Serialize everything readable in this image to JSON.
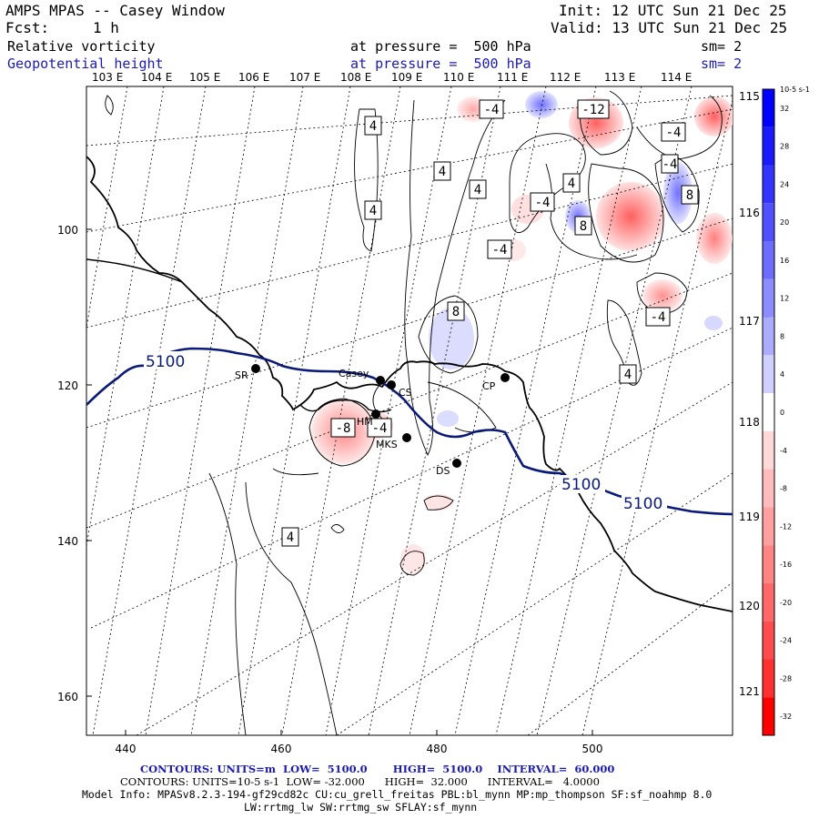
{
  "header": {
    "title": "AMPS MPAS -- Casey Window",
    "init": "Init: 12 UTC Sun 21 Dec 25",
    "fcst_label": "Fcst:",
    "fcst_value": "1 h",
    "valid": "Valid: 13 UTC Sun 21 Dec 25",
    "field1": "Relative vorticity",
    "field1_level": "at pressure =  500 hPa",
    "field1_sm": "sm= 2",
    "field2": "Geopotential height",
    "field2_level": "at pressure =  500 hPa",
    "field2_sm": "sm= 2"
  },
  "map": {
    "lon_labels_top": [
      "103 E",
      "104 E",
      "105 E",
      "106 E",
      "107 E",
      "108 E",
      "109 E",
      "110 E",
      "111 E",
      "112 E",
      "113 E",
      "114 E"
    ],
    "lat_labels_right": [
      "115 E",
      "116 E",
      "117 E",
      "118 E",
      "119 E",
      "120 E",
      "121 E"
    ],
    "x_ticks": [
      "440",
      "460",
      "480",
      "500"
    ],
    "y_ticks": [
      "100",
      "120",
      "140",
      "160"
    ],
    "stations": [
      "SR",
      "Casey",
      "CS",
      "HM",
      "MKS",
      "CP",
      "DS"
    ],
    "height_contour_label": "5100",
    "vorticity_labels": [
      "-4",
      "-12",
      "-4",
      "4",
      "4",
      "4",
      "4",
      "-4",
      "4",
      "8",
      "-4",
      "8",
      "-4",
      "8",
      "-4",
      "4",
      "-8",
      "-4",
      "4"
    ],
    "colors": {
      "height": "#0a1a78",
      "positive": "#e8464a",
      "negative": "#3c3ce0",
      "coast": "#000000"
    }
  },
  "colorbar": {
    "units": "10-5 s-1",
    "ticks": [
      "32",
      "28",
      "24",
      "20",
      "16",
      "12",
      "8",
      "4",
      "0",
      "-4",
      "-8",
      "-12",
      "-16",
      "-20",
      "-24",
      "-28",
      "-32"
    ],
    "colors": [
      "#0000ff",
      "#1a1aff",
      "#3434ff",
      "#5050ff",
      "#6c6cff",
      "#8c8cff",
      "#acacff",
      "#d0d0ff",
      "#ffffff",
      "#ffd8d8",
      "#ffbcbc",
      "#ffa0a0",
      "#ff8484",
      "#ff6868",
      "#ff4c4c",
      "#ff3030",
      "#ff0000"
    ]
  },
  "footer": {
    "line1_label": "CONTOURS: UNITS=m",
    "line1_low": "LOW=  5100.0",
    "line1_high": "HIGH=  5100.0",
    "line1_interval": "INTERVAL=  60.000",
    "line2_label": "CONTOURS: UNITS=10-5 s-1",
    "line2_low": "LOW= -32.000",
    "line2_high": "HIGH=  32.000",
    "line2_interval": "INTERVAL=   4.0000",
    "model_info": "Model Info: MPASv8.2.3-194-gf29cd82c CU:cu_grell_freitas PBL:bl_mynn MP:mp_thompson SF:sf_noahmp 8.0",
    "model_info2": "LW:rrtmg_lw SW:rrtmg_sw SFLAY:sf_mynn"
  }
}
